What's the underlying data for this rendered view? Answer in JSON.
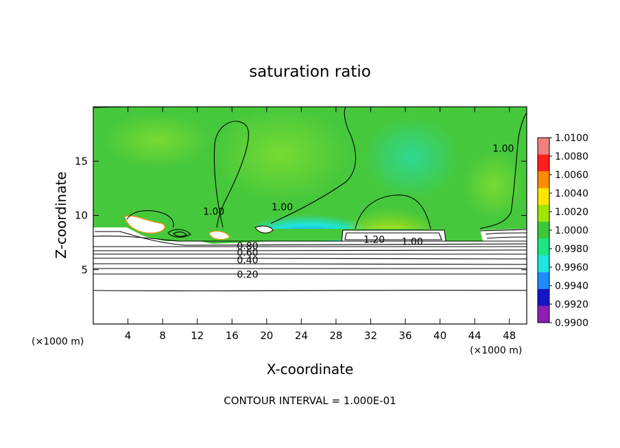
{
  "chart_data": {
    "type": "heatmap",
    "title": "saturation ratio",
    "xlabel": "X-coordinate",
    "ylabel": "Z-coordinate",
    "x_unit": "(×1000 m)",
    "y_unit": "(×1000 m)",
    "xlim": [
      0,
      50
    ],
    "ylim": [
      0,
      20
    ],
    "x_ticks": [
      4,
      8,
      12,
      16,
      20,
      24,
      28,
      32,
      36,
      40,
      44,
      48
    ],
    "y_ticks": [
      5,
      10,
      15
    ],
    "colorbar": {
      "levels": [
        "1.0100",
        "1.0080",
        "1.0060",
        "1.0040",
        "1.0020",
        "1.0000",
        "0.9980",
        "0.9960",
        "0.9940",
        "0.9920",
        "0.9900"
      ],
      "colors": [
        "#f08080",
        "#ff1e1e",
        "#ff8c00",
        "#ffe600",
        "#a0e600",
        "#3cc83c",
        "#1ee682",
        "#1ee6dc",
        "#1e8cff",
        "#1414c8",
        "#8c1eb4"
      ]
    },
    "contour_labels": [
      {
        "text": "1.00",
        "x": 13.9,
        "y": 10.2
      },
      {
        "text": "1.00",
        "x": 21.8,
        "y": 10.6
      },
      {
        "text": "1.00",
        "x": 47.3,
        "y": 16.0
      },
      {
        "text": "1.20",
        "x": 32.4,
        "y": 7.6
      },
      {
        "text": "1.00",
        "x": 36.8,
        "y": 7.4
      },
      {
        "text": "0.80",
        "x": 17.8,
        "y": 7.0
      },
      {
        "text": "0.60",
        "x": 17.8,
        "y": 6.4
      },
      {
        "text": "0.40",
        "x": 17.8,
        "y": 5.7
      },
      {
        "text": "0.20",
        "x": 17.8,
        "y": 4.4
      }
    ],
    "contour_interval_text": "CONTOUR INTERVAL = 1.000E-01"
  }
}
